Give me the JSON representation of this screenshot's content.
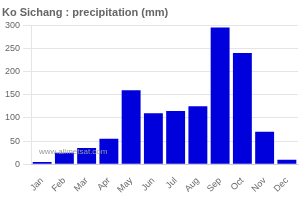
{
  "chart_data": {
    "type": "bar",
    "title": "Ko Sichang : precipitation (mm)",
    "categories": [
      "Jan",
      "Feb",
      "Mar",
      "Apr",
      "May",
      "Jun",
      "Jul",
      "Aug",
      "Sep",
      "Oct",
      "Nov",
      "Dec"
    ],
    "values": [
      5,
      25,
      35,
      55,
      160,
      110,
      115,
      125,
      295,
      240,
      70,
      10
    ],
    "color": "#0000dd",
    "ylim": [
      0,
      300
    ],
    "yticks": [
      0,
      50,
      100,
      150,
      200,
      250,
      300
    ],
    "grid": true,
    "annotation": "www.allmetsat.com"
  }
}
